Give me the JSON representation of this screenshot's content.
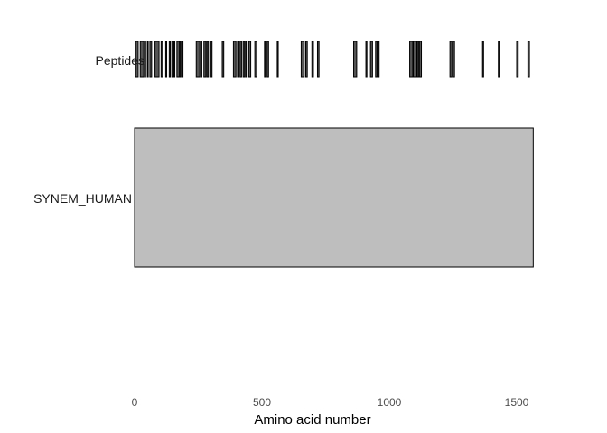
{
  "chart_data": {
    "type": "bar",
    "xlabel": "Amino acid number",
    "ylabel": "",
    "xlim": [
      0,
      1600
    ],
    "xticks": [
      0,
      500,
      1000,
      1500
    ],
    "grid": false,
    "tracks": [
      "Peptides",
      "SYNEM_HUMAN"
    ],
    "protein": {
      "name": "SYNEM_HUMAN",
      "start": 1,
      "end": 1565,
      "color": "#bebebe"
    },
    "peptides": [
      [
        4,
        14
      ],
      [
        22,
        36
      ],
      [
        40,
        42
      ],
      [
        50,
        52
      ],
      [
        60,
        67
      ],
      [
        80,
        96
      ],
      [
        104,
        110
      ],
      [
        122,
        126
      ],
      [
        136,
        140
      ],
      [
        146,
        152
      ],
      [
        154,
        158
      ],
      [
        166,
        176
      ],
      [
        178,
        182
      ],
      [
        186,
        190
      ],
      [
        242,
        256
      ],
      [
        260,
        264
      ],
      [
        272,
        280
      ],
      [
        284,
        290
      ],
      [
        300,
        304
      ],
      [
        344,
        350
      ],
      [
        388,
        398
      ],
      [
        404,
        410
      ],
      [
        414,
        420
      ],
      [
        426,
        432
      ],
      [
        436,
        440
      ],
      [
        448,
        456
      ],
      [
        472,
        480
      ],
      [
        510,
        514
      ],
      [
        520,
        526
      ],
      [
        560,
        564
      ],
      [
        654,
        666
      ],
      [
        672,
        678
      ],
      [
        696,
        702
      ],
      [
        718,
        724
      ],
      [
        860,
        872
      ],
      [
        908,
        912
      ],
      [
        926,
        934
      ],
      [
        946,
        952
      ],
      [
        956,
        960
      ],
      [
        1080,
        1092
      ],
      [
        1094,
        1108
      ],
      [
        1110,
        1116
      ],
      [
        1118,
        1126
      ],
      [
        1238,
        1246
      ],
      [
        1250,
        1256
      ],
      [
        1366,
        1370
      ],
      [
        1428,
        1432
      ],
      [
        1500,
        1506
      ],
      [
        1544,
        1550
      ]
    ],
    "peptide_color": "#555555"
  }
}
